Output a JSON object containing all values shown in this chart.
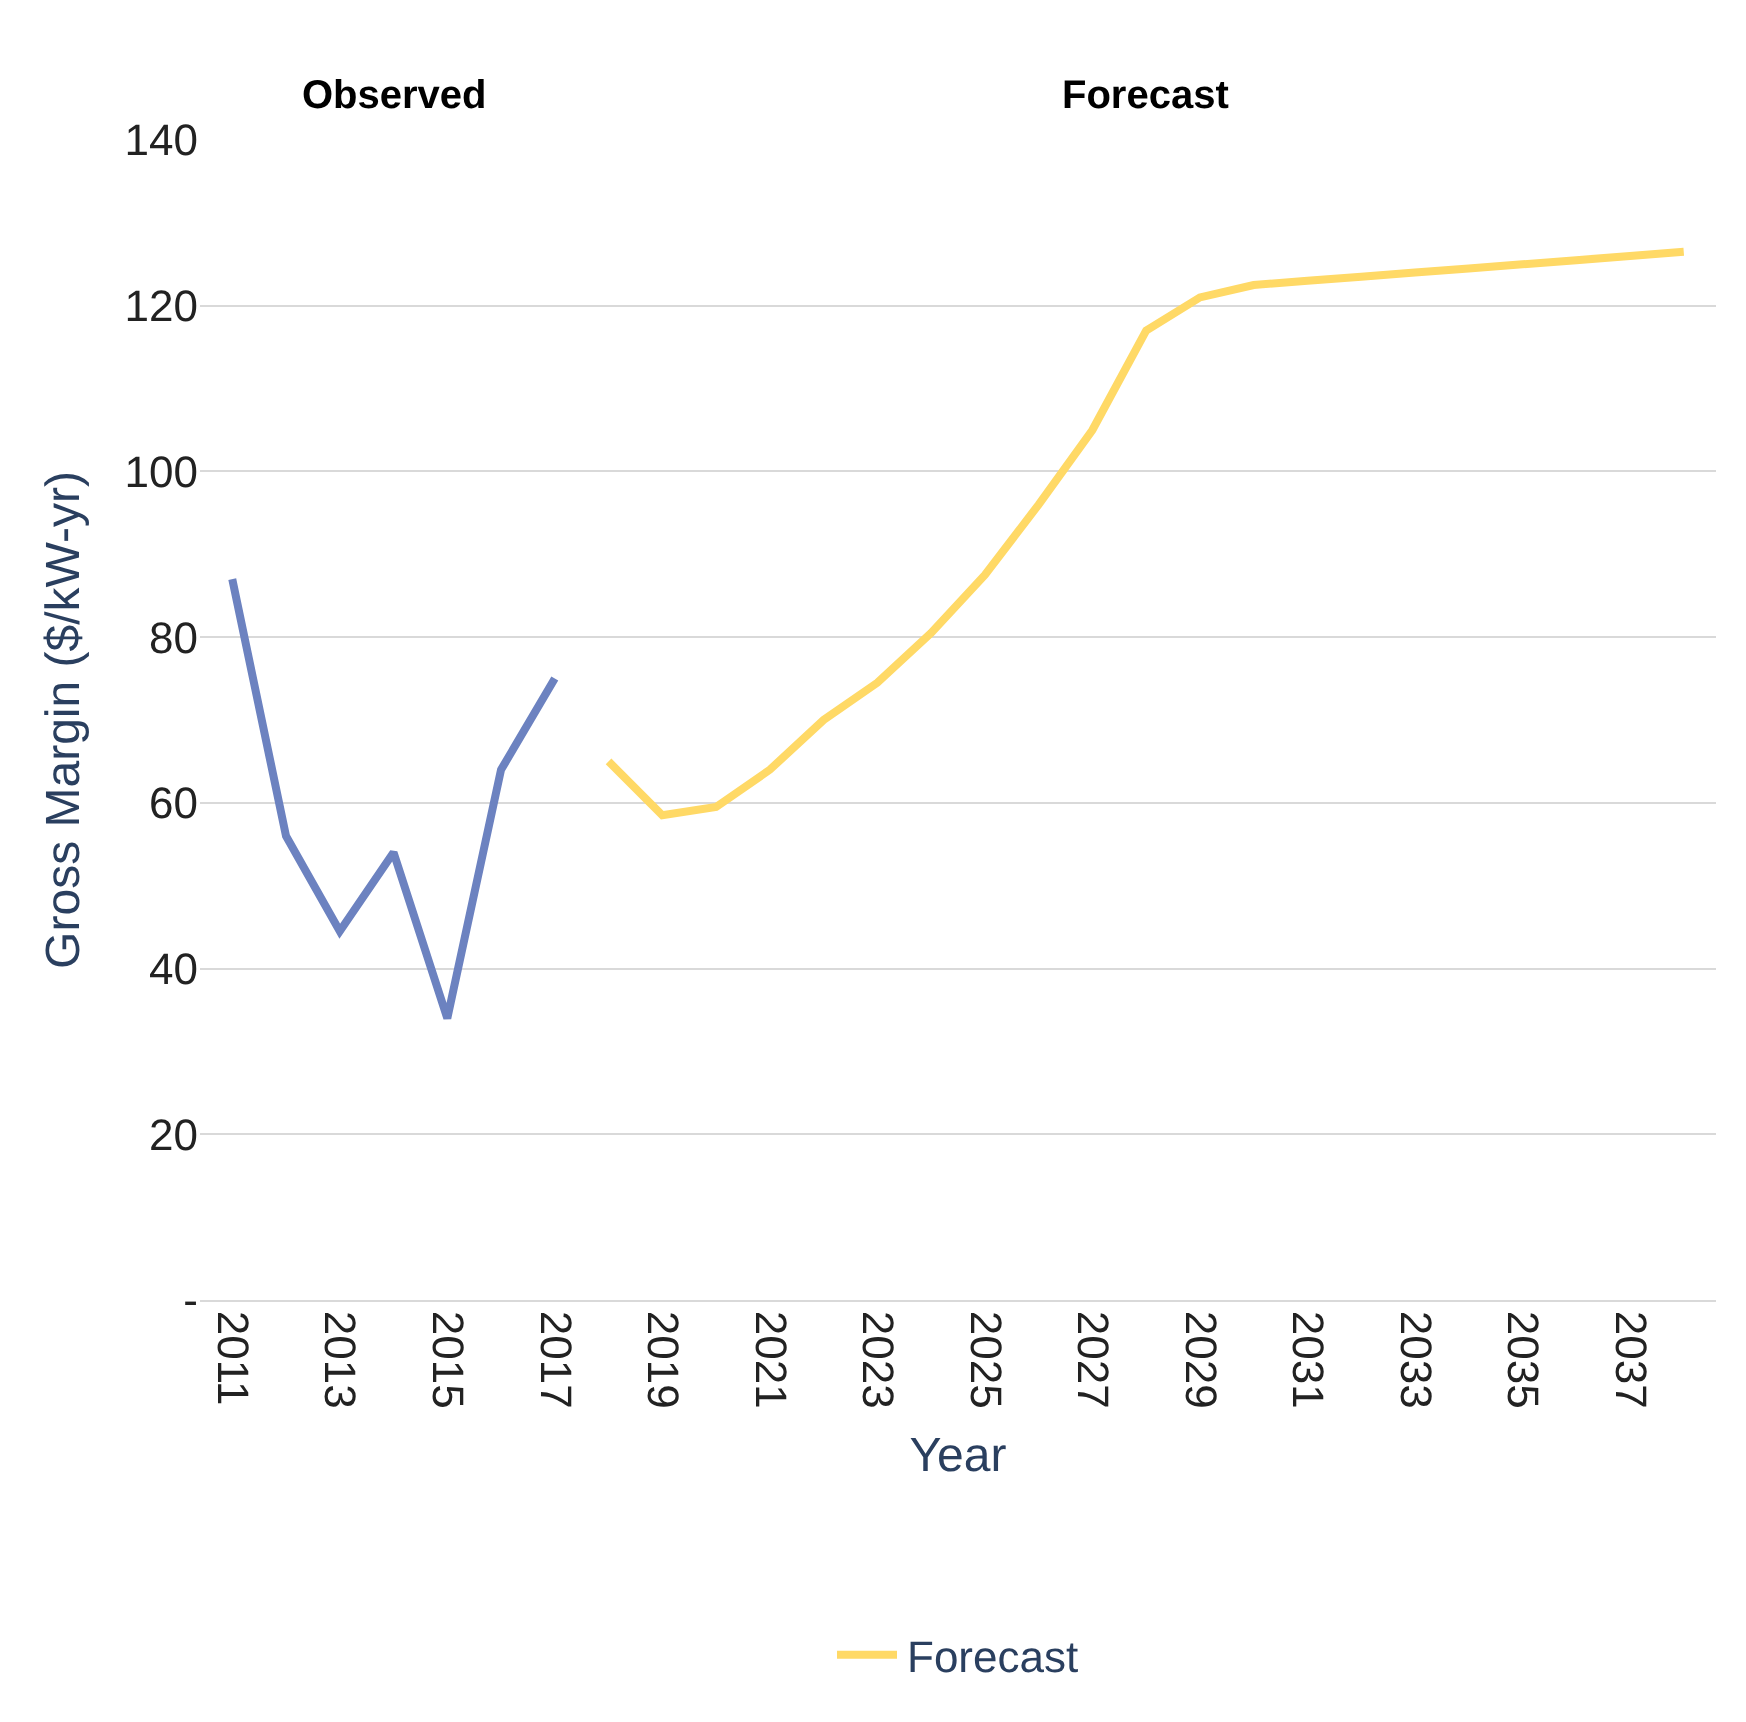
{
  "chart_data": {
    "type": "line",
    "xlabel": "Year",
    "ylabel": "Gross Margin ($/kW-yr)",
    "annotations": [
      "Observed",
      "Forecast"
    ],
    "categories": [
      "2011",
      null,
      "2013",
      null,
      "2015",
      null,
      "2017",
      null,
      "2019",
      null,
      "2021",
      null,
      "2023",
      null,
      "2025",
      null,
      "2027",
      null,
      "2029",
      null,
      "2031",
      null,
      "2033",
      null,
      "2035",
      null,
      "2037",
      null
    ],
    "series": [
      {
        "color": "#6c82c0",
        "values": [
          87,
          56,
          44.5,
          54,
          34,
          64,
          75,
          null,
          null,
          null,
          null,
          null,
          null,
          null,
          null,
          null,
          null,
          null,
          null,
          null,
          null,
          null,
          null,
          null,
          null,
          null,
          null,
          null
        ]
      },
      {
        "name": "Forecast",
        "color": "#ffd966",
        "values": [
          null,
          null,
          null,
          null,
          null,
          null,
          null,
          65,
          58.5,
          59.5,
          64,
          70,
          74.5,
          80.5,
          87.5,
          96,
          105,
          117,
          121,
          122.5,
          123,
          123.5,
          124,
          124.5,
          125,
          125.5,
          126,
          126.5
        ]
      }
    ],
    "ylim": [
      0,
      140
    ],
    "yticks": [
      {
        "value": 0,
        "label": "-"
      },
      20,
      40,
      60,
      80,
      100,
      120,
      140
    ],
    "grid": "y",
    "legend": "bottom",
    "marker": "none",
    "line_style": "solid"
  }
}
